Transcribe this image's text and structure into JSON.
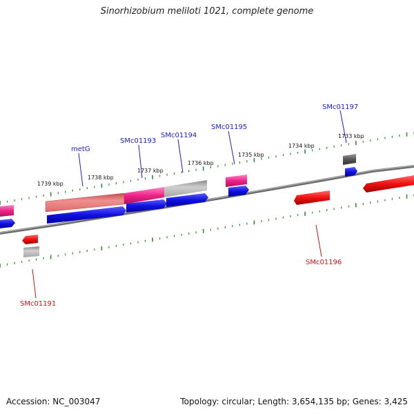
{
  "title": "Sinorhizobium meliloti 1021, complete genome",
  "footer": {
    "accession": "Accession: NC_003047",
    "summary": "Topology: circular; Length: 3,654,135 bp; Genes: 3,425"
  },
  "scale_labels": [
    "1739 kbp",
    "1738 kbp",
    "1737 kbp",
    "1736 kbp",
    "1735 kbp",
    "1734 kbp",
    "1733 kbp"
  ],
  "gene_labels": {
    "forward": [
      "metG",
      "SMc01193",
      "SMc01194",
      "SMc01195",
      "SMc01197"
    ],
    "reverse": [
      "SMc01196",
      "SMc01191"
    ]
  },
  "colors": {
    "forward_label": "#1a1acc",
    "reverse_label": "#cc1111",
    "backbone": "#7a7a7a",
    "tick": "#2e8b2e",
    "blue_feature": "#1111dd",
    "red_feature": "#ee1111",
    "pink_feature": "#ee2288",
    "salmon_feature": "#ee7a7a",
    "gray_feature": "#aaaaaa",
    "dark_feature": "#555555"
  }
}
